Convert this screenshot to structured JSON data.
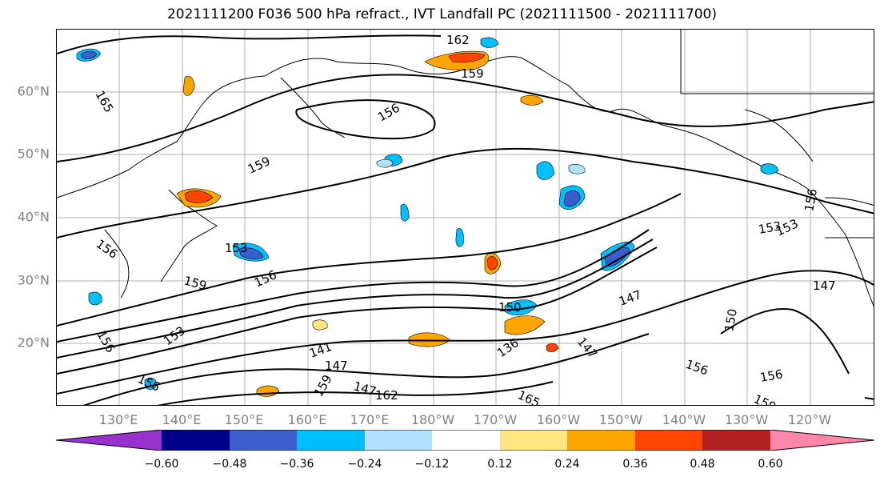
{
  "title": "2021111200 F036 500 hPa refract., IVT Landfall PC (2021111500 - 2021111700)",
  "lat_labels": [
    "60°N",
    "50°N",
    "40°N",
    "30°N",
    "20°N"
  ],
  "lon_labels": [
    "130°E",
    "140°E",
    "150°E",
    "160°E",
    "170°E",
    "180°W",
    "170°W",
    "160°W",
    "150°W",
    "140°W",
    "130°W",
    "120°W"
  ],
  "contour_labels": [
    "162",
    "165",
    "159",
    "156",
    "159",
    "153",
    "156",
    "159",
    "156",
    "150",
    "147",
    "147",
    "141",
    "147",
    "136",
    "153",
    "156",
    "162",
    "165",
    "156",
    "159",
    "153",
    "156",
    "147",
    "156",
    "150",
    "153",
    "147",
    "156",
    "159"
  ],
  "colorbar": {
    "colors": [
      "#9932cc",
      "#00008b",
      "#3a5fcd",
      "#00bfff",
      "#b0e2ff",
      "#ffffff",
      "#ffe680",
      "#ffa500",
      "#ff4500",
      "#b22222",
      "#ff88aa"
    ],
    "tick_labels": [
      "−0.60",
      "−0.48",
      "−0.36",
      "−0.24",
      "−0.12",
      "0.12",
      "0.24",
      "0.36",
      "0.48",
      "0.60"
    ]
  }
}
